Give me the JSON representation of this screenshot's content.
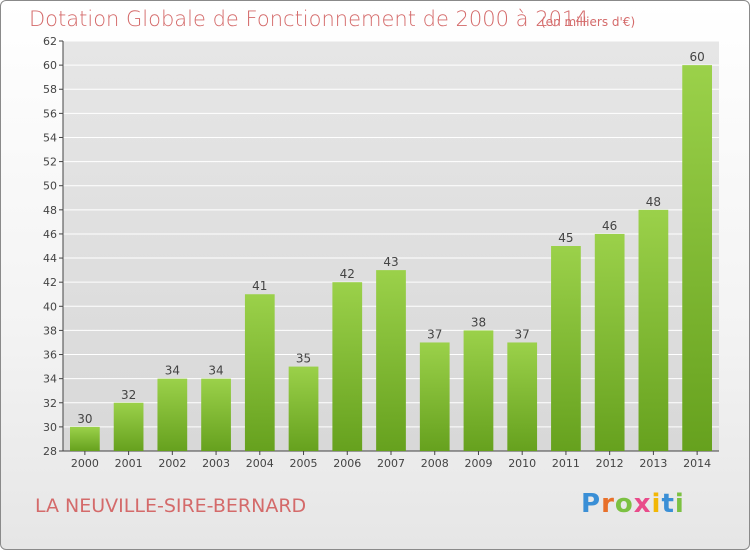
{
  "header": {
    "title": "Dotation Globale de Fonctionnement de 2000 à 2014",
    "unit_note": "(en milliers d'€)"
  },
  "footer": {
    "commune": "LA NEUVILLE-SIRE-BERNARD",
    "logo_letters": [
      "P",
      "r",
      "o",
      "x",
      "i",
      "t",
      "i"
    ],
    "logo_colors": [
      "#3a8fd6",
      "#e8702a",
      "#7cc142",
      "#e94b8a",
      "#f2b705",
      "#3a8fd6",
      "#7cc142"
    ]
  },
  "colors": {
    "title": "#d46a6a",
    "bar_light": "#9bd14a",
    "bar_dark": "#66a11e",
    "axis": "#444444",
    "grid": "#ffffff"
  },
  "chart_data": {
    "type": "bar",
    "categories": [
      "2000",
      "2001",
      "2002",
      "2003",
      "2004",
      "2005",
      "2006",
      "2007",
      "2008",
      "2009",
      "2010",
      "2011",
      "2012",
      "2013",
      "2014"
    ],
    "values": [
      30,
      32,
      34,
      34,
      41,
      35,
      42,
      43,
      37,
      38,
      37,
      45,
      46,
      48,
      60
    ],
    "data_labels": [
      "30",
      "32",
      "34",
      "34",
      "41",
      "35",
      "42",
      "43",
      "37",
      "38",
      "37",
      "45",
      "46",
      "48",
      "60"
    ],
    "yticks": [
      "28",
      "30",
      "32",
      "34",
      "36",
      "38",
      "40",
      "42",
      "44",
      "46",
      "48",
      "50",
      "52",
      "54",
      "56",
      "58",
      "60",
      "62"
    ],
    "ylim": [
      28,
      62
    ],
    "grid": true,
    "legend": "none"
  }
}
